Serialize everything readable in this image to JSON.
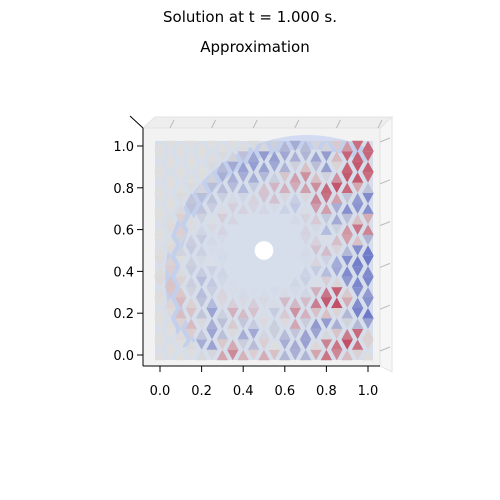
{
  "figure": {
    "suptitle": "Solution at t = 1.000 s.",
    "title": "Approximation"
  },
  "chart_data": {
    "type": "heatmap",
    "title": "Approximation",
    "suptitle": "Solution at t = 1.000 s.",
    "xlabel": "",
    "ylabel": "",
    "xlim": [
      -0.05,
      1.05
    ],
    "ylim": [
      -0.05,
      1.05
    ],
    "x_ticks": [
      "0.0",
      "0.2",
      "0.4",
      "0.6",
      "0.8",
      "1.0"
    ],
    "y_ticks": [
      "0.0",
      "0.2",
      "0.4",
      "0.6",
      "0.8",
      "1.0"
    ],
    "colormap": "coolwarm",
    "obstacle": {
      "cx": 0.5,
      "cy": 0.5,
      "r": 0.045
    },
    "grid_step": 0.05,
    "field": [
      {
        "x": 0.1,
        "y": 0.45,
        "v": 0.1
      },
      {
        "x": 0.1,
        "y": 0.35,
        "v": 0.15
      },
      {
        "x": 0.15,
        "y": 0.6,
        "v": 0.12
      },
      {
        "x": 0.15,
        "y": 0.25,
        "v": 0.2
      },
      {
        "x": 0.15,
        "y": 0.5,
        "v": -0.25
      },
      {
        "x": 0.15,
        "y": 0.4,
        "v": -0.3
      },
      {
        "x": 0.2,
        "y": 0.7,
        "v": -0.25
      },
      {
        "x": 0.2,
        "y": 0.55,
        "v": -0.35
      },
      {
        "x": 0.2,
        "y": 0.3,
        "v": -0.45
      },
      {
        "x": 0.2,
        "y": 0.15,
        "v": 0.25
      },
      {
        "x": 0.25,
        "y": 0.2,
        "v": -0.75
      },
      {
        "x": 0.25,
        "y": 0.1,
        "v": -0.55
      },
      {
        "x": 0.25,
        "y": 0.35,
        "v": -0.4
      },
      {
        "x": 0.25,
        "y": 0.45,
        "v": 0.2
      },
      {
        "x": 0.3,
        "y": 0.75,
        "v": -0.3
      },
      {
        "x": 0.3,
        "y": 0.6,
        "v": 0.3
      },
      {
        "x": 0.3,
        "y": 0.4,
        "v": -0.5
      },
      {
        "x": 0.3,
        "y": 0.3,
        "v": 0.35
      },
      {
        "x": 0.35,
        "y": 0.85,
        "v": -0.35
      },
      {
        "x": 0.35,
        "y": 0.7,
        "v": 0.4
      },
      {
        "x": 0.35,
        "y": 0.45,
        "v": -0.45
      },
      {
        "x": 0.35,
        "y": 0.2,
        "v": 0.45
      },
      {
        "x": 0.35,
        "y": 0.05,
        "v": 0.45
      },
      {
        "x": 0.4,
        "y": 0.8,
        "v": -0.55
      },
      {
        "x": 0.4,
        "y": 0.35,
        "v": 0.35
      },
      {
        "x": 0.4,
        "y": 0.3,
        "v": -0.6
      },
      {
        "x": 0.4,
        "y": 0.1,
        "v": -0.4
      },
      {
        "x": 0.45,
        "y": 0.88,
        "v": -0.5
      },
      {
        "x": 0.45,
        "y": 0.65,
        "v": 0.45
      },
      {
        "x": 0.45,
        "y": 0.4,
        "v": -0.3
      },
      {
        "x": 0.45,
        "y": 0.25,
        "v": 0.5
      },
      {
        "x": 0.45,
        "y": 0.1,
        "v": -0.8
      },
      {
        "x": 0.5,
        "y": 0.75,
        "v": 0.5
      },
      {
        "x": 0.5,
        "y": 0.35,
        "v": -0.6
      },
      {
        "x": 0.5,
        "y": 0.15,
        "v": 0.4
      },
      {
        "x": 0.5,
        "y": 0.05,
        "v": 0.3
      },
      {
        "x": 0.55,
        "y": 0.9,
        "v": -0.45
      },
      {
        "x": 0.55,
        "y": 0.6,
        "v": -0.55
      },
      {
        "x": 0.55,
        "y": 0.45,
        "v": 0.35
      },
      {
        "x": 0.55,
        "y": 0.2,
        "v": -0.7
      },
      {
        "x": 0.6,
        "y": 0.8,
        "v": 0.45
      },
      {
        "x": 0.6,
        "y": 0.55,
        "v": 0.45
      },
      {
        "x": 0.6,
        "y": 0.25,
        "v": 0.8
      },
      {
        "x": 0.6,
        "y": 0.35,
        "v": -0.4
      },
      {
        "x": 0.6,
        "y": 0.1,
        "v": -0.5
      },
      {
        "x": 0.65,
        "y": 0.95,
        "v": -0.35
      },
      {
        "x": 0.65,
        "y": 0.7,
        "v": -0.65
      },
      {
        "x": 0.65,
        "y": 0.45,
        "v": -0.55
      },
      {
        "x": 0.65,
        "y": 0.15,
        "v": 0.85
      },
      {
        "x": 0.65,
        "y": 0.05,
        "v": -0.3
      },
      {
        "x": 0.7,
        "y": 0.85,
        "v": 0.45
      },
      {
        "x": 0.7,
        "y": 0.6,
        "v": 0.4
      },
      {
        "x": 0.7,
        "y": 0.3,
        "v": -0.45
      },
      {
        "x": 0.7,
        "y": 0.1,
        "v": -0.7
      },
      {
        "x": 0.75,
        "y": 0.7,
        "v": 0.65
      },
      {
        "x": 0.75,
        "y": 0.5,
        "v": 0.55
      },
      {
        "x": 0.75,
        "y": 0.25,
        "v": 0.95
      },
      {
        "x": 0.75,
        "y": 0.15,
        "v": -0.6
      },
      {
        "x": 0.8,
        "y": 0.9,
        "v": -0.55
      },
      {
        "x": 0.8,
        "y": 0.6,
        "v": -0.75
      },
      {
        "x": 0.8,
        "y": 0.4,
        "v": -0.5
      },
      {
        "x": 0.8,
        "y": 0.3,
        "v": 0.7
      },
      {
        "x": 0.8,
        "y": 0.05,
        "v": 0.5
      },
      {
        "x": 0.85,
        "y": 0.8,
        "v": 0.7
      },
      {
        "x": 0.85,
        "y": 0.55,
        "v": 0.45
      },
      {
        "x": 0.85,
        "y": 0.25,
        "v": 0.75
      },
      {
        "x": 0.85,
        "y": 0.15,
        "v": -0.65
      },
      {
        "x": 0.9,
        "y": 0.92,
        "v": 0.6
      },
      {
        "x": 0.9,
        "y": 0.7,
        "v": -0.6
      },
      {
        "x": 0.9,
        "y": 0.45,
        "v": -0.65
      },
      {
        "x": 0.9,
        "y": 0.1,
        "v": 0.75
      },
      {
        "x": 0.95,
        "y": 0.85,
        "v": 0.65
      },
      {
        "x": 0.95,
        "y": 0.6,
        "v": 0.55
      },
      {
        "x": 0.95,
        "y": 0.35,
        "v": -0.6
      },
      {
        "x": 0.95,
        "y": 0.2,
        "v": -0.7
      },
      {
        "x": 1.0,
        "y": 0.75,
        "v": -0.6
      },
      {
        "x": 1.0,
        "y": 0.5,
        "v": -0.7
      },
      {
        "x": 1.0,
        "y": 0.95,
        "v": 0.55
      }
    ]
  }
}
